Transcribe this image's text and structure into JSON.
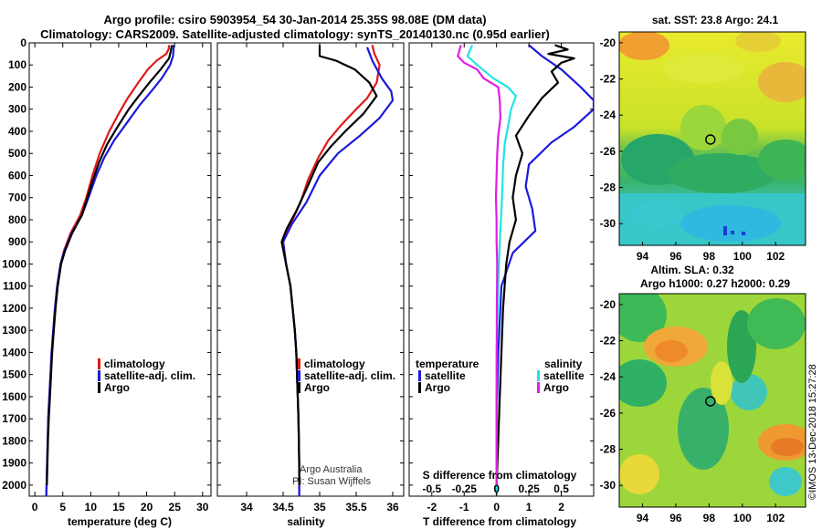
{
  "header": {
    "title_line1": "Argo profile: csiro 5903954_54 30-Jan-2014 25.35S 98.08E (DM data)",
    "title_line2": "Climatology: CARS2009. Satellite-adjusted climatology: synTS_20140130.nc (0.95d earlier)"
  },
  "credits": {
    "program": "Argo Australia",
    "pi": "PI: Susan Wijffels",
    "stamp": "©IMOS 13-Dec-2018 15:27:28"
  },
  "colors": {
    "climatology": "#e01818",
    "satellite": "#1a1adc",
    "argo": "#000000",
    "satellite_salinity": "#22e4e4",
    "argo_salinity": "#e020e0"
  },
  "depth_axis": {
    "ticks": [
      0,
      100,
      200,
      300,
      400,
      500,
      600,
      700,
      800,
      900,
      1000,
      1100,
      1200,
      1300,
      1400,
      1500,
      1600,
      1700,
      1800,
      1900,
      2000
    ],
    "range": [
      0,
      2050
    ]
  },
  "chart_data": [
    {
      "type": "line",
      "title": "temperature profile",
      "xlabel": "temperature (deg C)",
      "ylabel": "depth",
      "xlim": [
        -1,
        31.5
      ],
      "xticks": [
        0,
        5,
        10,
        15,
        20,
        25,
        30
      ],
      "legend": [
        "climatology",
        "satellite-adj. clim.",
        "Argo"
      ],
      "series": [
        {
          "name": "climatology",
          "color": "#e01818",
          "points": [
            [
              24.0,
              10
            ],
            [
              23.9,
              30
            ],
            [
              23.5,
              50
            ],
            [
              21.8,
              80
            ],
            [
              20.2,
              120
            ],
            [
              18.5,
              180
            ],
            [
              16.6,
              250
            ],
            [
              15.0,
              320
            ],
            [
              13.3,
              400
            ],
            [
              11.6,
              500
            ],
            [
              10.3,
              600
            ],
            [
              9.2,
              700
            ],
            [
              8.1,
              780
            ],
            [
              6.4,
              860
            ],
            [
              5.2,
              940
            ],
            [
              4.6,
              1000
            ],
            [
              4.0,
              1100
            ],
            [
              3.6,
              1200
            ],
            [
              3.3,
              1300
            ],
            [
              3.0,
              1400
            ],
            [
              2.8,
              1500
            ],
            [
              2.6,
              1600
            ],
            [
              2.4,
              1700
            ],
            [
              2.3,
              1800
            ],
            [
              2.2,
              1900
            ],
            [
              2.1,
              2000
            ],
            [
              2.05,
              2050
            ]
          ]
        },
        {
          "name": "satellite-adj. clim.",
          "color": "#1a1adc",
          "points": [
            [
              24.8,
              10
            ],
            [
              24.8,
              30
            ],
            [
              24.7,
              60
            ],
            [
              24.2,
              100
            ],
            [
              22.7,
              160
            ],
            [
              20.8,
              220
            ],
            [
              18.8,
              280
            ],
            [
              16.5,
              360
            ],
            [
              14.2,
              440
            ],
            [
              12.4,
              520
            ],
            [
              11.0,
              600
            ],
            [
              9.6,
              700
            ],
            [
              8.4,
              780
            ],
            [
              6.6,
              860
            ],
            [
              5.3,
              940
            ],
            [
              4.6,
              1000
            ],
            [
              4.0,
              1100
            ],
            [
              3.6,
              1200
            ],
            [
              3.3,
              1300
            ],
            [
              3.0,
              1400
            ],
            [
              2.8,
              1500
            ],
            [
              2.6,
              1600
            ],
            [
              2.4,
              1700
            ],
            [
              2.3,
              1800
            ],
            [
              2.2,
              1900
            ],
            [
              2.1,
              2000
            ],
            [
              2.05,
              2050
            ]
          ]
        },
        {
          "name": "Argo",
          "color": "#000000",
          "points": [
            [
              24.5,
              10
            ],
            [
              24.3,
              40
            ],
            [
              24.0,
              70
            ],
            [
              22.5,
              120
            ],
            [
              20.5,
              180
            ],
            [
              18.6,
              240
            ],
            [
              16.8,
              300
            ],
            [
              14.8,
              380
            ],
            [
              12.9,
              460
            ],
            [
              11.5,
              540
            ],
            [
              10.4,
              620
            ],
            [
              9.4,
              700
            ],
            [
              8.4,
              780
            ],
            [
              6.7,
              860
            ],
            [
              5.4,
              940
            ],
            [
              4.7,
              1000
            ],
            [
              4.1,
              1100
            ],
            [
              3.7,
              1200
            ],
            [
              3.4,
              1300
            ],
            [
              3.1,
              1400
            ],
            [
              2.9,
              1500
            ],
            [
              2.7,
              1600
            ],
            [
              2.5,
              1700
            ],
            [
              2.35,
              1800
            ],
            [
              2.25,
              1900
            ],
            [
              2.15,
              2000
            ]
          ]
        }
      ]
    },
    {
      "type": "line",
      "title": "salinity profile",
      "xlabel": "salinity",
      "ylabel": "depth",
      "xlim": [
        33.6,
        36.15
      ],
      "xticks": [
        34,
        34.5,
        35,
        35.5,
        36
      ],
      "xticklabels": [
        "34",
        "34.5",
        "35",
        "35.5",
        "36"
      ],
      "legend": [
        "climatology",
        "satellite-adj. clim.",
        "Argo"
      ],
      "series": [
        {
          "name": "climatology",
          "color": "#e01818",
          "points": [
            [
              35.72,
              10
            ],
            [
              35.75,
              50
            ],
            [
              35.82,
              100
            ],
            [
              35.78,
              180
            ],
            [
              35.65,
              250
            ],
            [
              35.5,
              300
            ],
            [
              35.3,
              370
            ],
            [
              35.12,
              440
            ],
            [
              34.98,
              520
            ],
            [
              34.84,
              620
            ],
            [
              34.74,
              720
            ],
            [
              34.6,
              820
            ],
            [
              34.5,
              900
            ],
            [
              34.54,
              1000
            ],
            [
              34.6,
              1100
            ],
            [
              34.63,
              1200
            ],
            [
              34.66,
              1300
            ],
            [
              34.68,
              1400
            ],
            [
              34.69,
              1500
            ],
            [
              34.7,
              1600
            ],
            [
              34.71,
              1700
            ],
            [
              34.715,
              1800
            ],
            [
              34.72,
              1900
            ],
            [
              34.72,
              2000
            ],
            [
              34.72,
              2050
            ]
          ]
        },
        {
          "name": "satellite-adj. clim.",
          "color": "#1a1adc",
          "points": [
            [
              35.65,
              20
            ],
            [
              35.72,
              80
            ],
            [
              35.85,
              160
            ],
            [
              35.98,
              220
            ],
            [
              36.0,
              260
            ],
            [
              35.82,
              340
            ],
            [
              35.55,
              420
            ],
            [
              35.25,
              500
            ],
            [
              35.0,
              600
            ],
            [
              34.82,
              720
            ],
            [
              34.62,
              820
            ],
            [
              34.5,
              900
            ],
            [
              34.54,
              1000
            ],
            [
              34.6,
              1100
            ],
            [
              34.63,
              1200
            ],
            [
              34.66,
              1300
            ],
            [
              34.68,
              1400
            ],
            [
              34.69,
              1500
            ],
            [
              34.7,
              1600
            ],
            [
              34.71,
              1700
            ],
            [
              34.715,
              1800
            ],
            [
              34.72,
              1900
            ],
            [
              34.72,
              2000
            ],
            [
              34.72,
              2050
            ]
          ]
        },
        {
          "name": "Argo",
          "color": "#000000",
          "points": [
            [
              35.0,
              10
            ],
            [
              35.0,
              60
            ],
            [
              35.22,
              80
            ],
            [
              35.48,
              120
            ],
            [
              35.68,
              180
            ],
            [
              35.78,
              240
            ],
            [
              35.6,
              320
            ],
            [
              35.35,
              400
            ],
            [
              35.15,
              470
            ],
            [
              34.98,
              540
            ],
            [
              34.82,
              660
            ],
            [
              34.68,
              760
            ],
            [
              34.55,
              840
            ],
            [
              34.48,
              900
            ],
            [
              34.54,
              1000
            ],
            [
              34.6,
              1100
            ],
            [
              34.63,
              1200
            ],
            [
              34.66,
              1300
            ],
            [
              34.68,
              1400
            ],
            [
              34.69,
              1500
            ],
            [
              34.7,
              1600
            ],
            [
              34.71,
              1700
            ],
            [
              34.715,
              1800
            ],
            [
              34.72,
              1900
            ],
            [
              34.72,
              2000
            ]
          ]
        }
      ]
    },
    {
      "type": "line",
      "title": "differences from climatology",
      "xlabel": "T difference from climatology",
      "xlabel_top": "S difference from climatology",
      "xlim": [
        -2.7,
        3.0
      ],
      "xticks": [
        -2,
        -1,
        0,
        1,
        2
      ],
      "xticks_top": [
        -0.5,
        -0.25,
        0,
        0.25,
        0.5
      ],
      "xticks_top_labels": [
        "-0.5",
        "-0.25",
        "0",
        "0.25",
        "0.5"
      ],
      "legend_groups": {
        "temperature": [
          "satellite",
          "Argo"
        ],
        "salinity": [
          "satellite",
          "Argo"
        ]
      },
      "series": [
        {
          "name": "temperature satellite",
          "color": "#1a1adc",
          "points": [
            [
              1.0,
              10
            ],
            [
              1.4,
              60
            ],
            [
              2.0,
              120
            ],
            [
              2.6,
              200
            ],
            [
              3.0,
              260
            ],
            [
              3.0,
              300
            ],
            [
              2.4,
              380
            ],
            [
              1.7,
              450
            ],
            [
              1.0,
              550
            ],
            [
              0.9,
              650
            ],
            [
              1.1,
              750
            ],
            [
              1.2,
              850
            ],
            [
              0.5,
              950
            ],
            [
              0.15,
              1100
            ],
            [
              0.05,
              1400
            ],
            [
              0.0,
              1700
            ],
            [
              0.0,
              2050
            ]
          ]
        },
        {
          "name": "temperature Argo",
          "color": "#000000",
          "points": [
            [
              1.8,
              10
            ],
            [
              2.2,
              30
            ],
            [
              1.6,
              50
            ],
            [
              2.4,
              70
            ],
            [
              2.0,
              90
            ],
            [
              1.7,
              130
            ],
            [
              1.9,
              180
            ],
            [
              1.4,
              250
            ],
            [
              1.0,
              330
            ],
            [
              0.6,
              420
            ],
            [
              0.8,
              500
            ],
            [
              0.6,
              600
            ],
            [
              0.5,
              700
            ],
            [
              0.6,
              800
            ],
            [
              0.4,
              900
            ],
            [
              0.3,
              1000
            ],
            [
              0.2,
              1200
            ],
            [
              0.15,
              1400
            ],
            [
              0.1,
              1600
            ],
            [
              0.05,
              1800
            ],
            [
              0.0,
              2000
            ]
          ]
        },
        {
          "name": "salinity satellite",
          "color": "#22e4e4",
          "points": [
            [
              -0.75,
              10
            ],
            [
              -0.9,
              60
            ],
            [
              -0.6,
              100
            ],
            [
              -0.1,
              160
            ],
            [
              0.35,
              200
            ],
            [
              0.6,
              240
            ],
            [
              0.45,
              300
            ],
            [
              0.35,
              380
            ],
            [
              0.25,
              460
            ],
            [
              0.2,
              560
            ],
            [
              0.18,
              650
            ],
            [
              0.15,
              760
            ],
            [
              0.1,
              900
            ],
            [
              0.05,
              1100
            ],
            [
              0.0,
              1400
            ],
            [
              0.0,
              2050
            ]
          ]
        },
        {
          "name": "salinity Argo",
          "color": "#e020e0",
          "points": [
            [
              -1.1,
              10
            ],
            [
              -1.2,
              60
            ],
            [
              -1.0,
              90
            ],
            [
              -0.6,
              120
            ],
            [
              -0.4,
              160
            ],
            [
              0.05,
              200
            ],
            [
              0.1,
              260
            ],
            [
              0.12,
              340
            ],
            [
              0.05,
              420
            ],
            [
              0.02,
              500
            ],
            [
              0.0,
              600
            ],
            [
              -0.02,
              700
            ],
            [
              0.0,
              800
            ],
            [
              0.0,
              900
            ],
            [
              0.02,
              1000
            ],
            [
              0.01,
              1200
            ],
            [
              0.0,
              1600
            ],
            [
              0.0,
              2000
            ]
          ]
        }
      ]
    },
    {
      "type": "heatmap",
      "title": "sat. SST: 23.8 Argo: 24.1",
      "xlim": [
        92.6,
        103.8
      ],
      "ylim": [
        -31.2,
        -19.4
      ],
      "xticks": [
        94,
        96,
        98,
        100,
        102
      ],
      "yticks": [
        -20,
        -22,
        -24,
        -26,
        -28,
        -30
      ],
      "marker": {
        "lon": 98.08,
        "lat": -25.35
      }
    },
    {
      "type": "heatmap",
      "title_line1": "Altim. SLA: 0.32",
      "title_line2": "Argo h1000: 0.27 h2000: 0.29",
      "xlim": [
        92.6,
        103.8
      ],
      "ylim": [
        -31.2,
        -19.4
      ],
      "xticks": [
        94,
        96,
        98,
        100,
        102
      ],
      "yticks": [
        -20,
        -22,
        -24,
        -26,
        -28,
        -30
      ],
      "marker": {
        "lon": 98.08,
        "lat": -25.35
      }
    }
  ]
}
